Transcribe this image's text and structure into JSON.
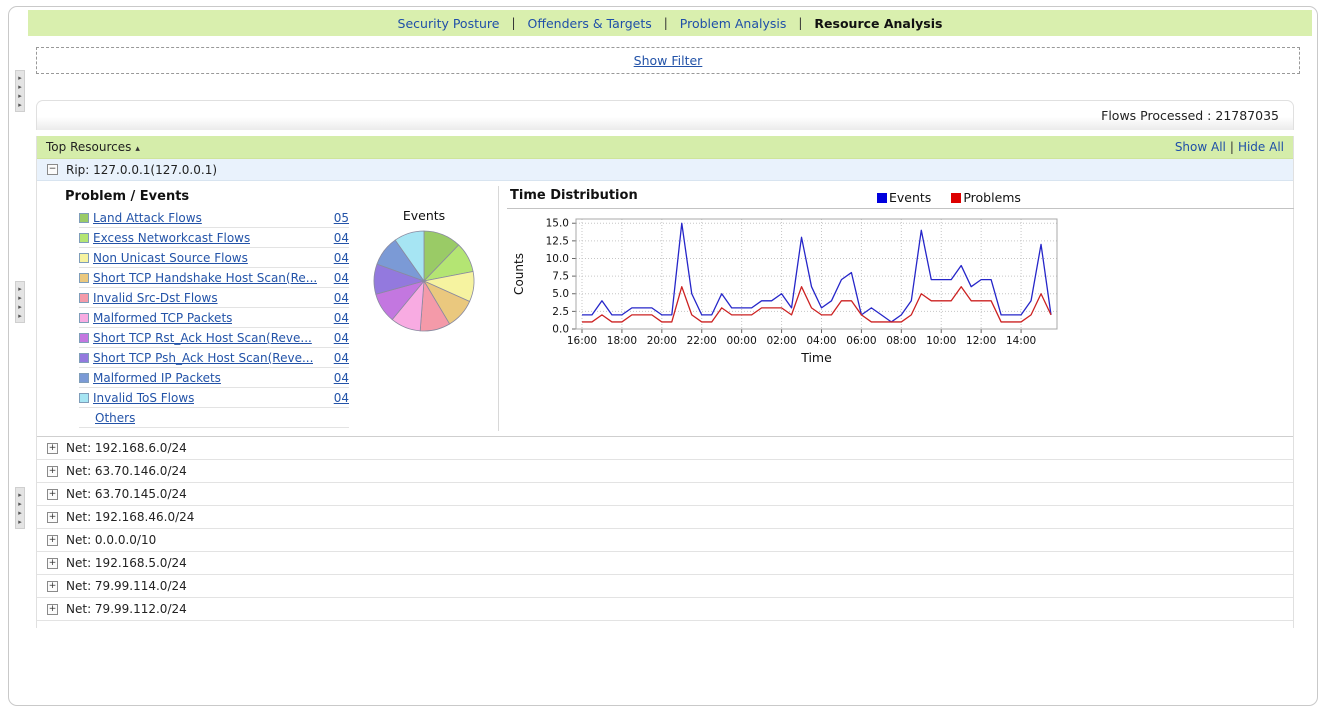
{
  "nav": {
    "separator": "|",
    "tabs": [
      {
        "label": "Security Posture",
        "active": false
      },
      {
        "label": "Offenders & Targets",
        "active": false
      },
      {
        "label": "Problem Analysis",
        "active": false
      },
      {
        "label": "Resource Analysis",
        "active": true
      }
    ]
  },
  "filter": {
    "show_filter_label": "Show Filter"
  },
  "flows": {
    "text": "Flows Processed : 21787035"
  },
  "resources": {
    "title": "Top Resources",
    "show_all": "Show All",
    "hide_all": "Hide All",
    "divider": "|"
  },
  "icons": {
    "sort_asc": "▴",
    "collapse": "−",
    "expand": "+",
    "splitter_arrow": "▸"
  },
  "rip": {
    "label": "Rip: 127.0.0.1(127.0.0.1)"
  },
  "problem_events": {
    "heading": "Problem / Events",
    "others_label": "Others",
    "items": [
      {
        "label": "Land Attack Flows",
        "count": "05",
        "color": "#9acb66"
      },
      {
        "label": "Excess Networkcast Flows",
        "count": "04",
        "color": "#b4e573"
      },
      {
        "label": "Non Unicast Source Flows",
        "count": "04",
        "color": "#f6f3a0"
      },
      {
        "label": "Short TCP Handshake Host Scan(Re...",
        "count": "04",
        "color": "#eac87e"
      },
      {
        "label": "Invalid Src-Dst Flows",
        "count": "04",
        "color": "#f49aa9"
      },
      {
        "label": "Malformed TCP Packets",
        "count": "04",
        "color": "#f8abe2"
      },
      {
        "label": "Short TCP Rst_Ack Host Scan(Reve...",
        "count": "04",
        "color": "#c377e0"
      },
      {
        "label": "Short TCP Psh_Ack Host Scan(Reve...",
        "count": "04",
        "color": "#9379de"
      },
      {
        "label": "Malformed IP Packets",
        "count": "04",
        "color": "#7b9ad6"
      },
      {
        "label": "Invalid ToS Flows",
        "count": "04",
        "color": "#a6e5f3"
      }
    ]
  },
  "time_distribution": {
    "heading": "Time Distribution",
    "legend": [
      {
        "label": "Events",
        "color": "#0000dd"
      },
      {
        "label": "Problems",
        "color": "#dd0000"
      }
    ]
  },
  "nets": [
    {
      "label": "Net: 192.168.6.0/24"
    },
    {
      "label": "Net: 63.70.146.0/24"
    },
    {
      "label": "Net: 63.70.145.0/24"
    },
    {
      "label": "Net: 192.168.46.0/24"
    },
    {
      "label": "Net: 0.0.0.0/10"
    },
    {
      "label": "Net: 192.168.5.0/24"
    },
    {
      "label": "Net: 79.99.114.0/24"
    },
    {
      "label": "Net: 79.99.112.0/24"
    }
  ],
  "chart_data": [
    {
      "type": "pie",
      "title": "Events",
      "labels": [
        "Land Attack Flows",
        "Excess Networkcast Flows",
        "Non Unicast Source Flows",
        "Short TCP Handshake Host Scan",
        "Invalid Src-Dst Flows",
        "Malformed TCP Packets",
        "Short TCP Rst_Ack Host Scan",
        "Short TCP Psh_Ack Host Scan",
        "Malformed IP Packets",
        "Invalid ToS Flows"
      ],
      "values": [
        5,
        4,
        4,
        4,
        4,
        4,
        4,
        4,
        4,
        4
      ],
      "colors": [
        "#9acb66",
        "#b4e573",
        "#f6f3a0",
        "#eac87e",
        "#f49aa9",
        "#f8abe2",
        "#c377e0",
        "#9379de",
        "#7b9ad6",
        "#a6e5f3"
      ]
    },
    {
      "type": "line",
      "title": "Time Distribution",
      "xlabel": "Time",
      "ylabel": "Counts",
      "ylim": [
        0,
        15
      ],
      "y_ticks": [
        "0.0",
        "2.5",
        "5.0",
        "7.5",
        "10.0",
        "12.5",
        "15.0"
      ],
      "x_tick_hours": [
        16,
        18,
        20,
        22,
        24,
        26,
        28,
        30,
        32,
        34,
        36,
        38
      ],
      "x_tick_labels": [
        "16:00",
        "18:00",
        "20:00",
        "22:00",
        "00:00",
        "02:00",
        "04:00",
        "06:00",
        "08:00",
        "10:00",
        "12:00",
        "14:00"
      ],
      "x_start_hour": 16,
      "x_step_hours": 0.5,
      "grid": "dotted",
      "legend_position": "top-right",
      "series": [
        {
          "name": "Events",
          "color": "#2626c9",
          "values": [
            2,
            2,
            4,
            2,
            2,
            3,
            3,
            3,
            2,
            2,
            15,
            5,
            2,
            2,
            5,
            3,
            3,
            3,
            4,
            4,
            5,
            3,
            13,
            6,
            3,
            4,
            7,
            8,
            2,
            3,
            2,
            1,
            2,
            4,
            14,
            7,
            7,
            7,
            9,
            6,
            7,
            7,
            2,
            2,
            2,
            4,
            12,
            2
          ]
        },
        {
          "name": "Problems",
          "color": "#cc2222",
          "values": [
            1,
            1,
            2,
            1,
            1,
            2,
            2,
            2,
            1,
            1,
            6,
            2,
            1,
            1,
            3,
            2,
            2,
            2,
            3,
            3,
            3,
            2,
            6,
            3,
            2,
            2,
            4,
            4,
            2,
            1,
            1,
            1,
            1,
            2,
            5,
            4,
            4,
            4,
            6,
            4,
            4,
            4,
            1,
            1,
            1,
            2,
            5,
            2
          ]
        }
      ]
    }
  ]
}
